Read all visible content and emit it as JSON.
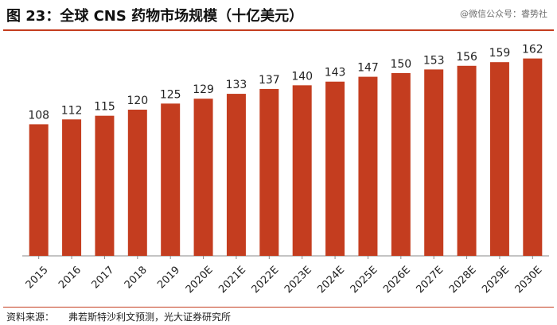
{
  "header": {
    "title": "图 23：全球 CNS 药物市场规模（十亿美元）",
    "watermark": "@微信公众号：睿势社"
  },
  "footer": {
    "source_label": "资料来源：",
    "source_text": "弗若斯特沙利文预测，光大证券研究所"
  },
  "colors": {
    "bar": "#c43d1f",
    "accent_rule": "#c43d1f",
    "axis": "#888888"
  },
  "chart_data": {
    "type": "bar",
    "categories": [
      "2015",
      "2016",
      "2017",
      "2018",
      "2019",
      "2020E",
      "2021E",
      "2022E",
      "2023E",
      "2024E",
      "2025E",
      "2026E",
      "2027E",
      "2028E",
      "2029E",
      "2030E"
    ],
    "series": [
      {
        "values": [
          108,
          112,
          115,
          120,
          125,
          129,
          133,
          137,
          140,
          143,
          147,
          150,
          153,
          156,
          159,
          162
        ]
      }
    ],
    "ylim": [
      0,
      180
    ],
    "xlabel": "",
    "ylabel": "",
    "grid": false,
    "legend": "none",
    "data_labels": true
  }
}
